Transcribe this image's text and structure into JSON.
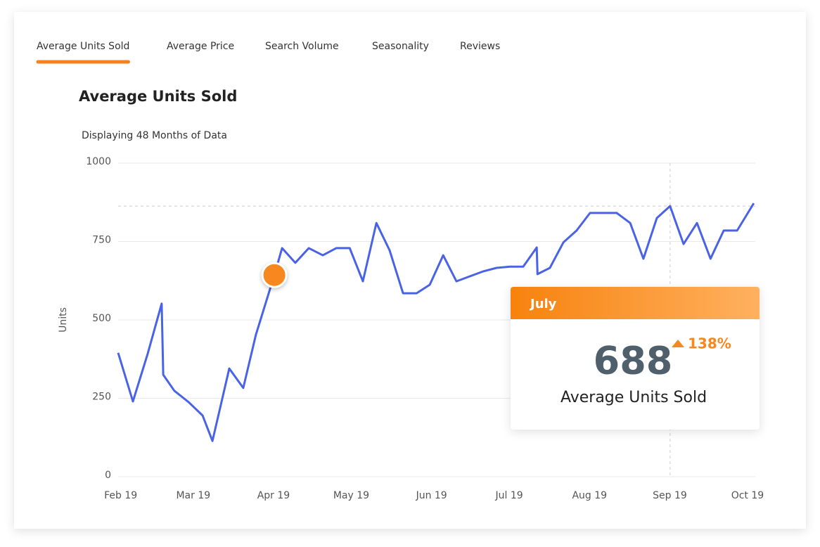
{
  "tabs": [
    "Average Units Sold",
    "Average Price",
    "Search Volume",
    "Seasonality",
    "Reviews"
  ],
  "active_tab": 0,
  "chart_data": {
    "type": "line",
    "title": "Average Units Sold",
    "subtitle": "Displaying 48 Months of Data",
    "y_label": "Units",
    "color": "#4a63e6",
    "x": [
      -1,
      4.7,
      10.4,
      15.8,
      16.4,
      20.7,
      26.2,
      31.6,
      35.4,
      41.9,
      47.3,
      52.2,
      59.3,
      62.3,
      67.4,
      72.6,
      78.0,
      83.2,
      88.4,
      93.5,
      98.7,
      103.8,
      109.0,
      114.2,
      119.3,
      124.5,
      129.6,
      134.8,
      140.0,
      145.1,
      150.3,
      155.4,
      160.6,
      160.9,
      165.7,
      170.9,
      176.0,
      181.2,
      186.3,
      191.5,
      196.7,
      201.8,
      207.0,
      212.1,
      217.3,
      222.5,
      227.7,
      232.8,
      238.0,
      244.4
    ],
    "values": [
      395,
      240,
      392,
      552,
      325,
      274,
      238,
      195,
      114,
      345,
      283,
      453,
      643,
      729,
      682,
      729,
      706,
      729,
      729,
      623,
      809,
      722,
      585,
      585,
      612,
      706,
      623,
      639,
      655,
      666,
      670,
      670,
      731,
      646,
      666,
      747,
      785,
      841,
      841,
      841,
      809,
      695,
      825,
      863,
      742,
      809,
      695,
      785,
      785,
      872
    ],
    "xlim": [
      -1,
      245
    ],
    "xticks": [
      {
        "value": 0,
        "label": "Feb 19"
      },
      {
        "value": 28,
        "label": "Mar 19"
      },
      {
        "value": 59,
        "label": "Apr 19"
      },
      {
        "value": 89,
        "label": "May 19"
      },
      {
        "value": 120,
        "label": "Jun 19"
      },
      {
        "value": 150,
        "label": "Jul 19"
      },
      {
        "value": 181,
        "label": "Aug 19"
      },
      {
        "value": 212,
        "label": "Sep 19"
      },
      {
        "value": 242,
        "label": "Oct 19"
      }
    ],
    "ylim": [
      0,
      1000
    ],
    "yticks": [
      0,
      250,
      500,
      750,
      1000
    ],
    "grid": true,
    "marker_index": 12,
    "marker_color": "#f7871f",
    "crosshair_index": 43
  },
  "tooltip": {
    "title": "July",
    "value": 688,
    "change": {
      "value": 138,
      "label": "138%"
    },
    "label": "Average Units Sold"
  }
}
